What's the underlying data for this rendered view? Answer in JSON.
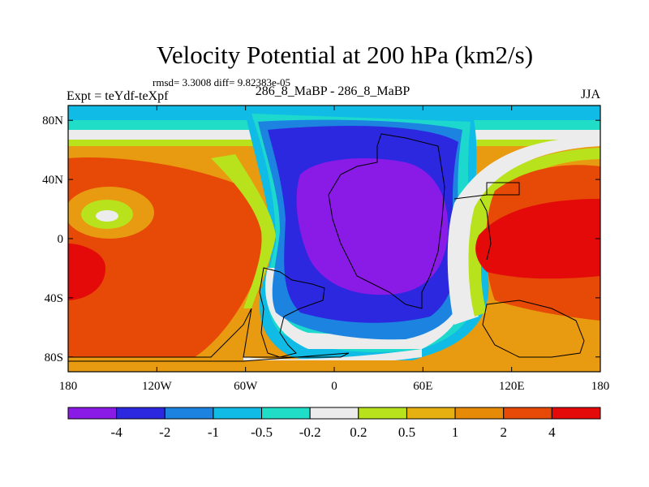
{
  "chart_data": {
    "type": "heatmap",
    "title": "Velocity Potential at 200 hPa (km2/s)",
    "stats": "rmsd= 3.3008 diff= 9.82383e-05",
    "left_label": "Expt = teYdf-teXpf",
    "center_label": "286_8_MaBP - 286_8_MaBP",
    "right_label": "JJA",
    "x_ticks": [
      "180",
      "120W",
      "60W",
      "0",
      "60E",
      "120E",
      "180"
    ],
    "y_ticks": [
      "80N",
      "40N",
      "0",
      "40S",
      "80S"
    ],
    "xlim": [
      -180,
      180
    ],
    "ylim": [
      -90,
      90
    ],
    "colorbar_levels": [
      "-4",
      "-2",
      "-1",
      "-0.5",
      "-0.2",
      "0.2",
      "0.5",
      "1",
      "2",
      "4"
    ],
    "colorbar_colors": [
      "#8a1ae6",
      "#2b28e0",
      "#1c84e0",
      "#10bce6",
      "#20ddc8",
      "#ececec",
      "#b8e21c",
      "#e6b010",
      "#e68a08",
      "#e64a06",
      "#e40a0a"
    ]
  }
}
